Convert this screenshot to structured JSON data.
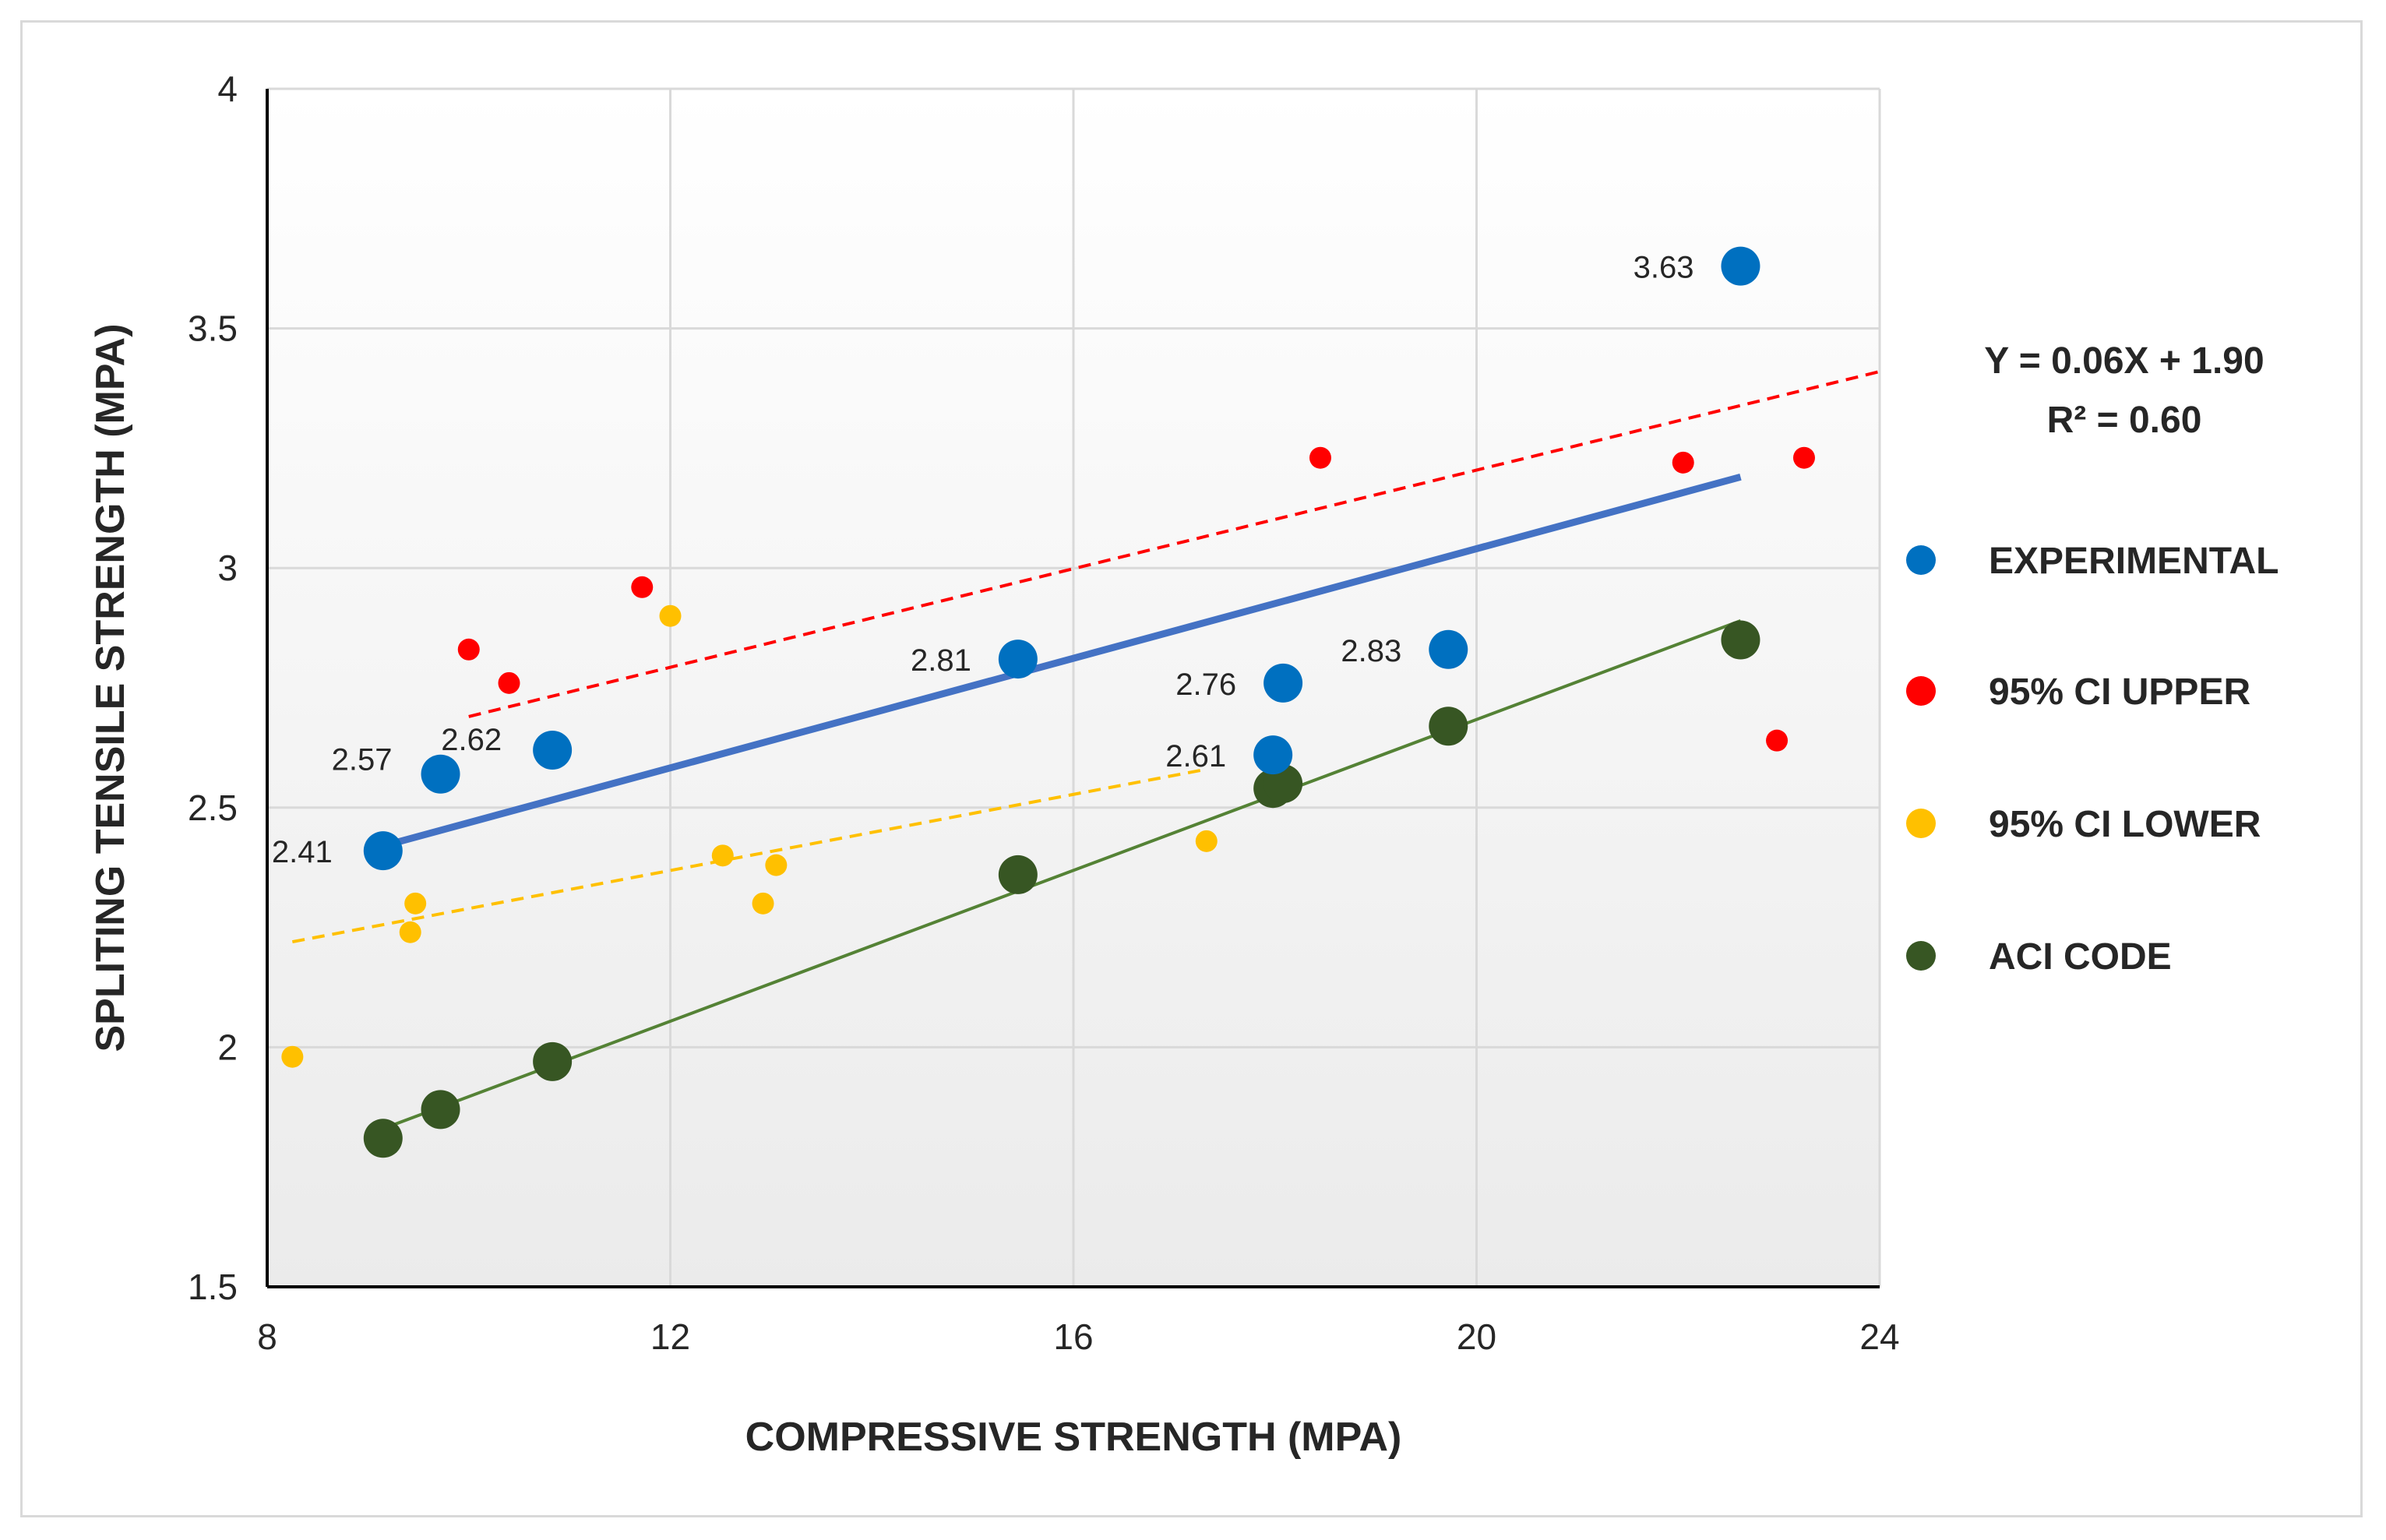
{
  "chart_data": {
    "type": "scatter",
    "title": "",
    "xlabel": "COMPRESSIVE STRENGTH (MPA)",
    "ylabel": "SPLITING TENSILE STRENGTH (MPA)",
    "xlim": [
      8,
      24
    ],
    "ylim": [
      1.5,
      4
    ],
    "x_ticks": [
      {
        "value": 8,
        "label": "8"
      },
      {
        "value": 12,
        "label": "12"
      },
      {
        "value": 16,
        "label": "16"
      },
      {
        "value": 20,
        "label": "20"
      },
      {
        "value": 24,
        "label": "24"
      }
    ],
    "y_ticks": [
      {
        "value": 1.5,
        "label": "1.5"
      },
      {
        "value": 2,
        "label": "2"
      },
      {
        "value": 2.5,
        "label": "2.5"
      },
      {
        "value": 3,
        "label": "3"
      },
      {
        "value": 3.5,
        "label": "3.5"
      },
      {
        "value": 4,
        "label": "4"
      }
    ],
    "grid": true,
    "legend_position": "right",
    "equation": {
      "line1": "Y = 0.06X + 1.90",
      "line2": "R² = 0.60"
    },
    "series": [
      {
        "name": "EXPERIMENTAL",
        "color": "#0070c0",
        "marker_size": "large",
        "points": [
          {
            "x": 9.15,
            "y": 2.41,
            "label": "2.41"
          },
          {
            "x": 9.72,
            "y": 2.57,
            "label": "2.57"
          },
          {
            "x": 10.83,
            "y": 2.62,
            "label": "2.62"
          },
          {
            "x": 15.45,
            "y": 2.81,
            "label": "2.81"
          },
          {
            "x": 17.98,
            "y": 2.61,
            "label": "2.61"
          },
          {
            "x": 18.08,
            "y": 2.76,
            "label": "2.76"
          },
          {
            "x": 19.72,
            "y": 2.83,
            "label": "2.83"
          },
          {
            "x": 22.62,
            "y": 3.63,
            "label": "3.63"
          }
        ],
        "trendline": {
          "x1": 9.15,
          "y1": 2.42,
          "x2": 22.62,
          "y2": 3.19,
          "color": "#4472c4",
          "style": "solid"
        }
      },
      {
        "name": "95% CI UPPER",
        "color": "#ff0000",
        "marker_size": "small",
        "points": [
          {
            "x": 10.0,
            "y": 2.83
          },
          {
            "x": 10.4,
            "y": 2.76
          },
          {
            "x": 11.72,
            "y": 2.96
          },
          {
            "x": 18.45,
            "y": 3.23
          },
          {
            "x": 22.05,
            "y": 3.22
          },
          {
            "x": 22.98,
            "y": 2.64
          },
          {
            "x": 23.25,
            "y": 3.23
          }
        ],
        "trendline": {
          "x1": 10.0,
          "y1": 2.69,
          "x2": 24.0,
          "y2": 3.41,
          "color": "#ff0000",
          "style": "dashed"
        }
      },
      {
        "name": "95% CI LOWER",
        "color": "#ffc000",
        "marker_size": "small",
        "points": [
          {
            "x": 8.25,
            "y": 1.98
          },
          {
            "x": 9.42,
            "y": 2.24
          },
          {
            "x": 9.47,
            "y": 2.3
          },
          {
            "x": 12.0,
            "y": 2.9
          },
          {
            "x": 12.52,
            "y": 2.4
          },
          {
            "x": 12.92,
            "y": 2.3
          },
          {
            "x": 13.05,
            "y": 2.38
          },
          {
            "x": 17.32,
            "y": 2.43
          }
        ],
        "trendline": {
          "x1": 8.25,
          "y1": 2.22,
          "x2": 17.32,
          "y2": 2.58,
          "color": "#ffc000",
          "style": "dashed"
        }
      },
      {
        "name": "ACI CODE",
        "color": "#375623",
        "marker_size": "large",
        "points": [
          {
            "x": 9.15,
            "y": 1.81
          },
          {
            "x": 9.72,
            "y": 1.87
          },
          {
            "x": 10.83,
            "y": 1.97
          },
          {
            "x": 15.45,
            "y": 2.36
          },
          {
            "x": 17.98,
            "y": 2.54
          },
          {
            "x": 18.08,
            "y": 2.55
          },
          {
            "x": 19.72,
            "y": 2.67
          },
          {
            "x": 22.62,
            "y": 2.85
          }
        ],
        "trendline": {
          "x1": 9.15,
          "y1": 1.83,
          "x2": 22.62,
          "y2": 2.89,
          "color": "#548235",
          "style": "solid"
        }
      }
    ]
  }
}
